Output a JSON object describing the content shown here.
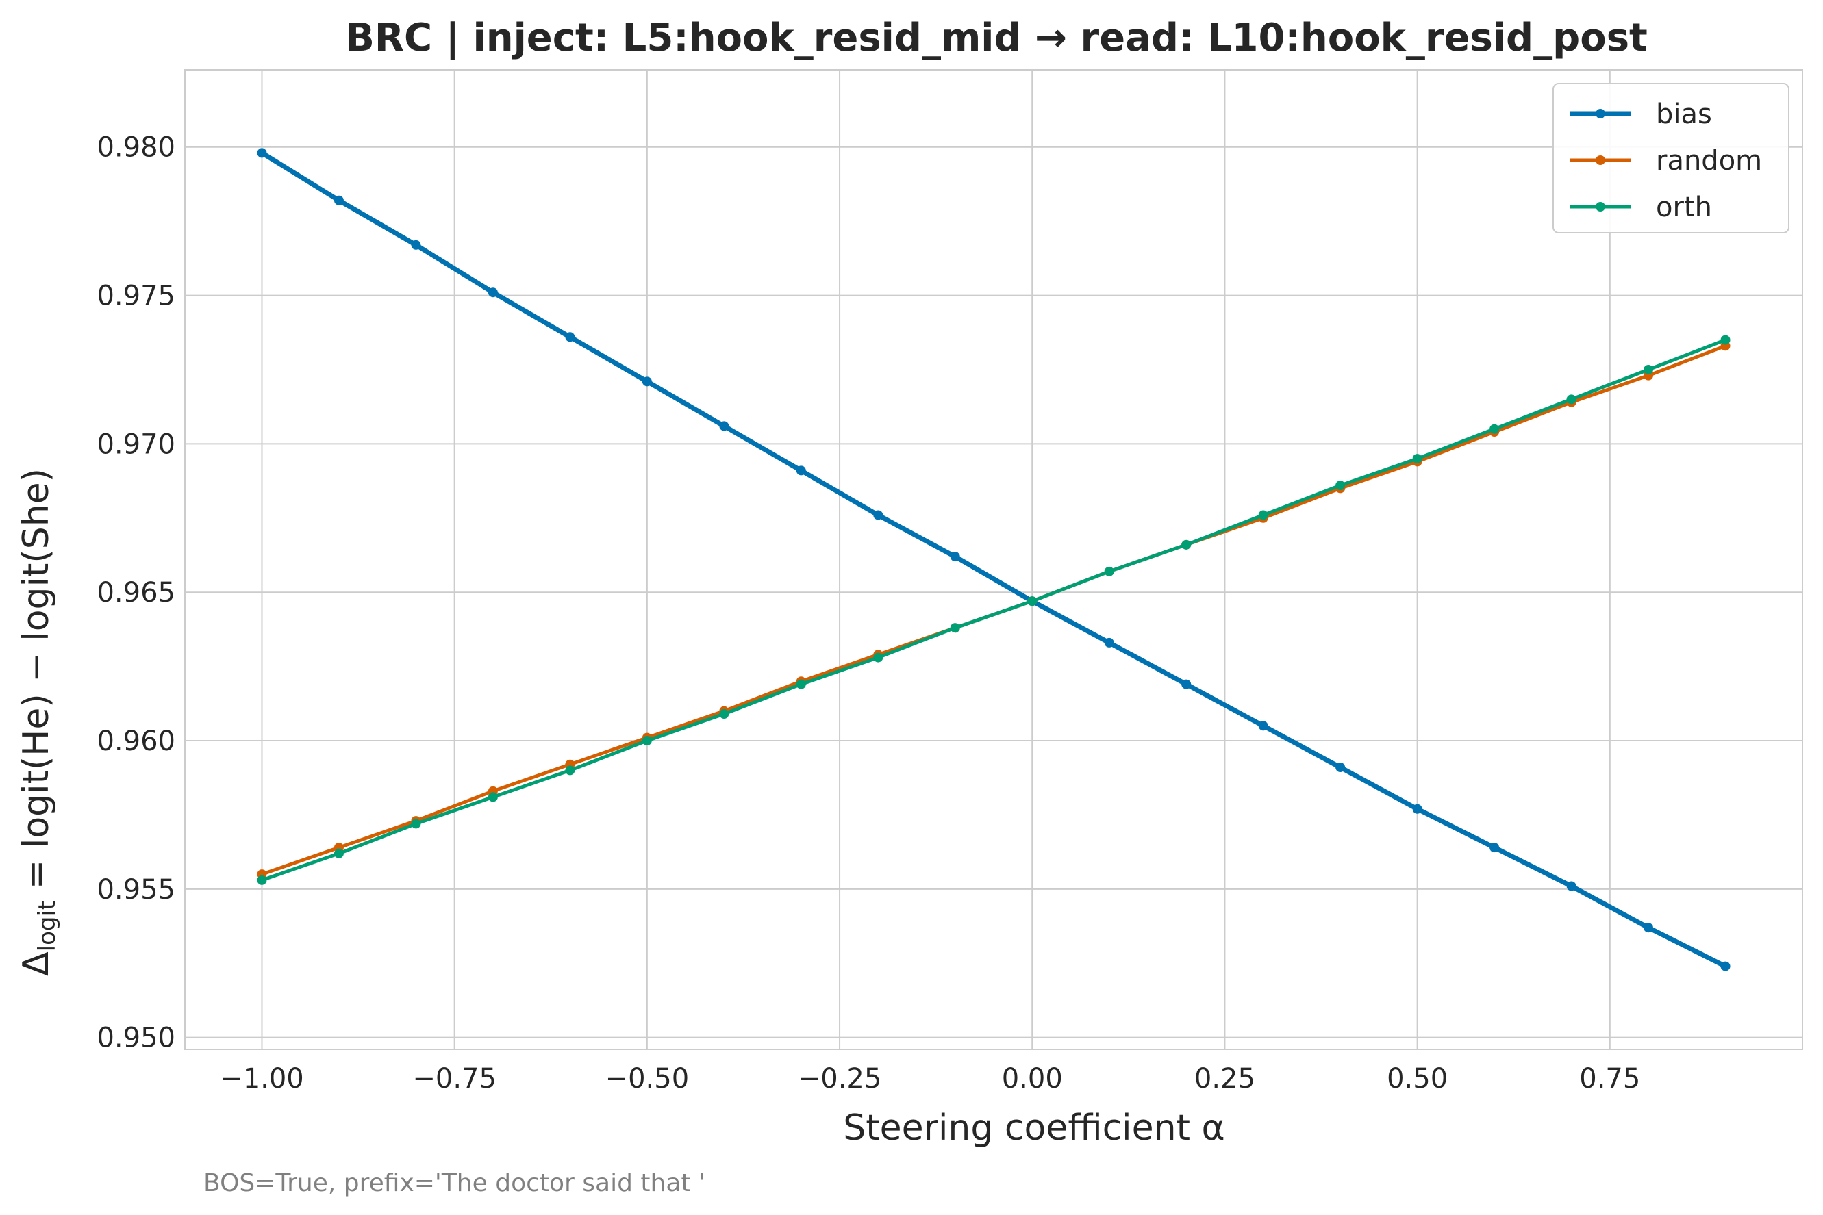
{
  "chart_data": {
    "type": "line",
    "title": "BRC | inject: L5:hook_resid_mid → read: L10:hook_resid_post",
    "xlabel": "Steering coefficient α",
    "ylabel": "Δlogit = logit(He) − logit(She)",
    "ylabel_parts": {
      "delta": "Δ",
      "sub": "logit",
      "rest": " = logit(He) − logit(She)"
    },
    "footnote": "BOS=True, prefix='The doctor said that '",
    "xlim": [
      -1.1,
      1.0
    ],
    "ylim": [
      0.9496,
      0.9826
    ],
    "xticks": [
      -1.0,
      -0.75,
      -0.5,
      -0.25,
      0.0,
      0.25,
      0.5,
      0.75
    ],
    "xtick_labels": [
      "−1.00",
      "−0.75",
      "−0.50",
      "−0.25",
      "0.00",
      "0.25",
      "0.50",
      "0.75"
    ],
    "yticks": [
      0.95,
      0.955,
      0.96,
      0.965,
      0.97,
      0.975,
      0.98
    ],
    "ytick_labels": [
      "0.950",
      "0.955",
      "0.960",
      "0.965",
      "0.970",
      "0.975",
      "0.980"
    ],
    "grid": true,
    "legend_position": "top-right",
    "x": [
      -1.0,
      -0.9,
      -0.8,
      -0.7,
      -0.6,
      -0.5,
      -0.4,
      -0.3,
      -0.2,
      -0.1,
      0.0,
      0.1,
      0.2,
      0.3,
      0.4,
      0.5,
      0.6,
      0.7,
      0.8,
      0.9
    ],
    "series": [
      {
        "name": "bias",
        "color": "#0072B2",
        "width": 7,
        "values": [
          0.9798,
          0.9782,
          0.9767,
          0.9751,
          0.9736,
          0.9721,
          0.9706,
          0.9691,
          0.9676,
          0.9662,
          0.9647,
          0.9633,
          0.9619,
          0.9605,
          0.9591,
          0.9577,
          0.9564,
          0.9551,
          0.9537,
          0.9524
        ]
      },
      {
        "name": "random",
        "color": "#D55E00",
        "width": 5,
        "values": [
          0.9555,
          0.9564,
          0.9573,
          0.9583,
          0.9592,
          0.9601,
          0.961,
          0.962,
          0.9629,
          0.9638,
          0.9647,
          0.9657,
          0.9666,
          0.9675,
          0.9685,
          0.9694,
          0.9704,
          0.9714,
          0.9723,
          0.9733
        ]
      },
      {
        "name": "orth",
        "color": "#009E73",
        "width": 5,
        "values": [
          0.9553,
          0.9562,
          0.9572,
          0.9581,
          0.959,
          0.96,
          0.9609,
          0.9619,
          0.9628,
          0.9638,
          0.9647,
          0.9657,
          0.9666,
          0.9676,
          0.9686,
          0.9695,
          0.9705,
          0.9715,
          0.9725,
          0.9735
        ]
      }
    ]
  }
}
